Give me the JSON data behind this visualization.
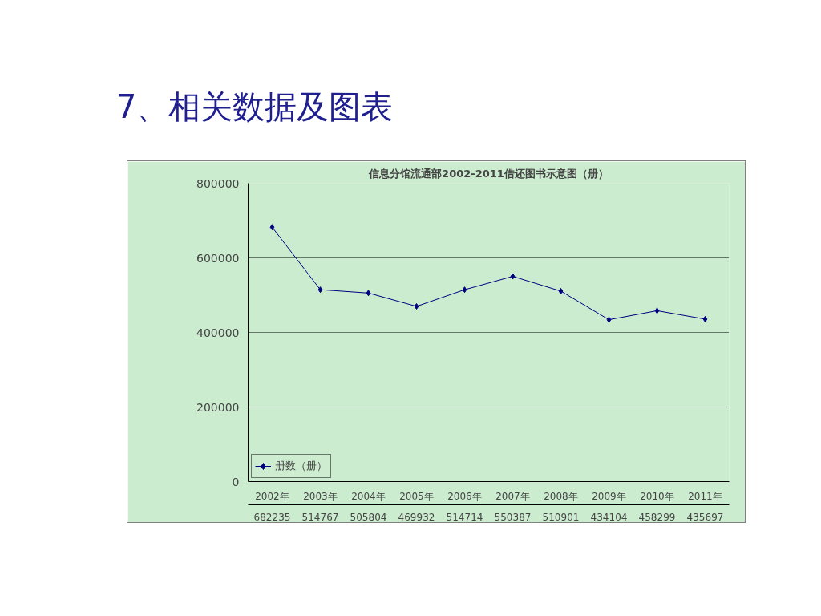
{
  "chart_data": {
    "type": "line",
    "title": "信息分馆流通部2002-2011借还图书示意图（册）",
    "annotations": [
      "7、相关数据及图表"
    ],
    "categories": [
      "2002年",
      "2003年",
      "2004年",
      "2005年",
      "2006年",
      "2007年",
      "2008年",
      "2009年",
      "2010年",
      "2011年"
    ],
    "series": [
      {
        "name": "册数（册）",
        "color": "#000080",
        "values": [
          682235,
          514767,
          505804,
          469932,
          514714,
          550387,
          510901,
          434104,
          458299,
          435697
        ]
      }
    ],
    "ylim": [
      0,
      800000
    ],
    "yticks": [
      0,
      200000,
      400000,
      600000,
      800000
    ],
    "grid": "y",
    "marker": "diamond",
    "data_labels": true,
    "legend": "bottom"
  }
}
